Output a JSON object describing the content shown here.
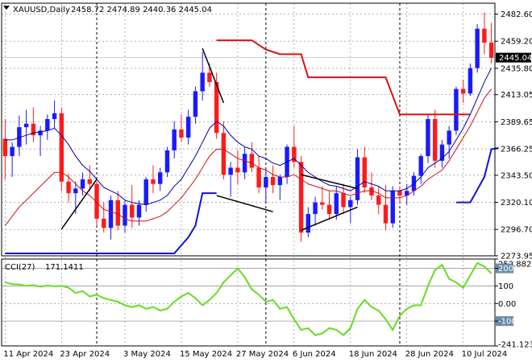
{
  "header": {
    "symbol": "XAUUSD,Daily",
    "ohlc": "2458.72 2474.89 2440.36 2445.04"
  },
  "indicator_header": {
    "name": "CCI(27)",
    "value": "171.1411"
  },
  "colors": {
    "bull": "#1a1aff",
    "bear": "#ff1a1a",
    "ma_fast": "#0000aa",
    "ma_slow": "#cc1111",
    "stop_up": "#1010dd",
    "stop_down": "#dd1010",
    "cci": "#66dd22",
    "grid": "#7f7f7f",
    "price_tag_bg": "#000000"
  },
  "chart_data": [
    {
      "type": "candlestick",
      "title": "XAUUSD,Daily",
      "ylim": [
        2273.95,
        2492.0
      ],
      "y_ticks": [
        "2482.60",
        "2459.20",
        "2435.80",
        "2413.05",
        "2389.65",
        "2366.25",
        "2343.50",
        "2320.10",
        "2296.70",
        "2273.95"
      ],
      "x_ticks": [
        "11 Apr 2024",
        "23 Apr 2024",
        "3 May 2024",
        "15 May 2024",
        "27 May 2024",
        "6 Jun 2024",
        "18 Jun 2024",
        "28 Jun 2024",
        "10 Jul 2024"
      ],
      "last_price": "2445.04",
      "candles": [
        [
          2375,
          2392,
          2340,
          2360
        ],
        [
          2360,
          2372,
          2342,
          2368
        ],
        [
          2368,
          2395,
          2360,
          2385
        ],
        [
          2385,
          2400,
          2370,
          2388
        ],
        [
          2388,
          2402,
          2372,
          2378
        ],
        [
          2378,
          2386,
          2360,
          2382
        ],
        [
          2382,
          2396,
          2374,
          2392
        ],
        [
          2392,
          2408,
          2384,
          2397
        ],
        [
          2397,
          2402,
          2330,
          2338
        ],
        [
          2338,
          2345,
          2320,
          2328
        ],
        [
          2328,
          2338,
          2310,
          2332
        ],
        [
          2332,
          2346,
          2326,
          2340
        ],
        [
          2340,
          2352,
          2330,
          2336
        ],
        [
          2336,
          2338,
          2300,
          2306
        ],
        [
          2306,
          2320,
          2294,
          2298
        ],
        [
          2298,
          2326,
          2288,
          2322
        ],
        [
          2322,
          2330,
          2296,
          2300
        ],
        [
          2300,
          2322,
          2294,
          2318
        ],
        [
          2318,
          2335,
          2298,
          2307
        ],
        [
          2307,
          2322,
          2300,
          2318
        ],
        [
          2318,
          2342,
          2312,
          2340
        ],
        [
          2340,
          2352,
          2328,
          2336
        ],
        [
          2336,
          2350,
          2330,
          2346
        ],
        [
          2346,
          2368,
          2342,
          2365
        ],
        [
          2365,
          2390,
          2358,
          2383
        ],
        [
          2383,
          2396,
          2372,
          2376
        ],
        [
          2376,
          2400,
          2370,
          2394
        ],
        [
          2394,
          2420,
          2388,
          2416
        ],
        [
          2416,
          2450,
          2408,
          2432
        ],
        [
          2432,
          2440,
          2420,
          2424
        ],
        [
          2424,
          2432,
          2375,
          2380
        ],
        [
          2380,
          2390,
          2340,
          2344
        ],
        [
          2344,
          2355,
          2325,
          2350
        ],
        [
          2350,
          2365,
          2336,
          2346
        ],
        [
          2346,
          2368,
          2340,
          2362
        ],
        [
          2362,
          2372,
          2346,
          2350
        ],
        [
          2350,
          2360,
          2328,
          2333
        ],
        [
          2333,
          2348,
          2320,
          2342
        ],
        [
          2342,
          2352,
          2328,
          2335
        ],
        [
          2335,
          2344,
          2322,
          2342
        ],
        [
          2342,
          2370,
          2336,
          2368
        ],
        [
          2368,
          2386,
          2350,
          2355
        ],
        [
          2355,
          2360,
          2286,
          2294
        ],
        [
          2294,
          2316,
          2290,
          2310
        ],
        [
          2310,
          2325,
          2300,
          2320
        ],
        [
          2320,
          2334,
          2314,
          2318
        ],
        [
          2318,
          2330,
          2305,
          2310
        ],
        [
          2310,
          2334,
          2305,
          2328
        ],
        [
          2328,
          2336,
          2310,
          2316
        ],
        [
          2316,
          2325,
          2302,
          2322
        ],
        [
          2322,
          2366,
          2318,
          2359
        ],
        [
          2359,
          2368,
          2328,
          2333
        ],
        [
          2333,
          2346,
          2322,
          2326
        ],
        [
          2326,
          2334,
          2310,
          2318
        ],
        [
          2318,
          2335,
          2296,
          2302
        ],
        [
          2302,
          2334,
          2298,
          2330
        ],
        [
          2330,
          2334,
          2320,
          2326
        ],
        [
          2326,
          2336,
          2318,
          2330
        ],
        [
          2330,
          2346,
          2326,
          2343
        ],
        [
          2343,
          2362,
          2336,
          2360
        ],
        [
          2360,
          2396,
          2354,
          2392
        ],
        [
          2392,
          2400,
          2350,
          2356
        ],
        [
          2356,
          2374,
          2350,
          2370
        ],
        [
          2370,
          2386,
          2358,
          2382
        ],
        [
          2382,
          2420,
          2378,
          2418
        ],
        [
          2418,
          2426,
          2406,
          2414
        ],
        [
          2414,
          2440,
          2412,
          2436
        ],
        [
          2436,
          2474,
          2432,
          2470
        ],
        [
          2470,
          2484,
          2448,
          2458
        ],
        [
          2458,
          2475,
          2440,
          2445
        ]
      ],
      "ma_fast": [
        2374,
        2374,
        2376,
        2378,
        2380,
        2381,
        2382,
        2384,
        2378,
        2370,
        2360,
        2352,
        2347,
        2340,
        2333,
        2330,
        2327,
        2322,
        2320,
        2319,
        2318,
        2320,
        2322,
        2326,
        2334,
        2340,
        2350,
        2360,
        2372,
        2384,
        2390,
        2386,
        2378,
        2372,
        2368,
        2366,
        2360,
        2358,
        2354,
        2352,
        2355,
        2358,
        2352,
        2346,
        2342,
        2338,
        2335,
        2334,
        2332,
        2330,
        2334,
        2338,
        2336,
        2334,
        2330,
        2330,
        2330,
        2332,
        2336,
        2342,
        2350,
        2354,
        2358,
        2364,
        2374,
        2384,
        2396,
        2410,
        2424,
        2436
      ],
      "ma_slow": [
        2300,
        2308,
        2316,
        2322,
        2328,
        2334,
        2340,
        2346,
        2346,
        2342,
        2336,
        2330,
        2326,
        2320,
        2314,
        2312,
        2310,
        2306,
        2304,
        2304,
        2304,
        2306,
        2308,
        2312,
        2318,
        2324,
        2332,
        2340,
        2350,
        2360,
        2366,
        2366,
        2362,
        2358,
        2356,
        2354,
        2350,
        2348,
        2344,
        2342,
        2342,
        2344,
        2340,
        2336,
        2334,
        2332,
        2330,
        2330,
        2328,
        2326,
        2328,
        2330,
        2330,
        2328,
        2324,
        2324,
        2324,
        2326,
        2330,
        2334,
        2340,
        2344,
        2348,
        2356,
        2366,
        2376,
        2386,
        2398,
        2410,
        2418
      ],
      "trailing_stop": [
        {
          "dir": "up",
          "points": [
            [
              0,
              2276
            ],
            [
              24,
              2276
            ],
            [
              26,
              2290
            ],
            [
              27,
              2300
            ],
            [
              28,
              2328
            ],
            [
              30,
              2328
            ]
          ]
        },
        {
          "dir": "down",
          "points": [
            [
              30,
              2460
            ],
            [
              35,
              2460
            ],
            [
              37,
              2452
            ],
            [
              39,
              2448
            ],
            [
              42,
              2448
            ],
            [
              43,
              2428
            ],
            [
              54,
              2428
            ],
            [
              56,
              2396
            ],
            [
              66,
              2396
            ]
          ]
        },
        {
          "dir": "up",
          "points": [
            [
              64,
              2320
            ],
            [
              66,
              2320
            ],
            [
              68,
              2342
            ],
            [
              69,
              2366
            ],
            [
              70,
              2367
            ]
          ]
        }
      ],
      "trendlines": [
        [
          [
            8,
            2297
          ],
          [
            13,
            2340
          ]
        ],
        [
          [
            28,
            2453
          ],
          [
            31,
            2406
          ]
        ],
        [
          [
            30,
            2326
          ],
          [
            38,
            2312
          ]
        ],
        [
          [
            42,
            2296
          ],
          [
            50,
            2316
          ]
        ],
        [
          [
            42,
            2344
          ],
          [
            50,
            2332
          ]
        ]
      ],
      "dotted_vlines": [
        13,
        37,
        56
      ]
    },
    {
      "type": "line",
      "title": "CCI(27) 171.1411",
      "ylim": [
        -241.123,
        252.8828
      ],
      "y_ticks": [
        "252.8828",
        "200",
        "100",
        "0.00",
        "-100",
        "-241.123"
      ],
      "levels": [
        200,
        100,
        -100
      ],
      "values": [
        120,
        110,
        108,
        100,
        104,
        96,
        102,
        98,
        100,
        90,
        60,
        70,
        40,
        50,
        30,
        20,
        10,
        -10,
        -20,
        -10,
        -30,
        -20,
        -40,
        -30,
        10,
        40,
        60,
        30,
        -10,
        20,
        60,
        120,
        160,
        200,
        150,
        80,
        50,
        10,
        20,
        -30,
        -20,
        -90,
        -150,
        -140,
        -180,
        -170,
        -140,
        -150,
        -180,
        -140,
        -30,
        20,
        -20,
        -40,
        -90,
        -150,
        -70,
        -30,
        -10,
        -10,
        100,
        190,
        220,
        140,
        120,
        90,
        160,
        230,
        210,
        171
      ]
    }
  ]
}
